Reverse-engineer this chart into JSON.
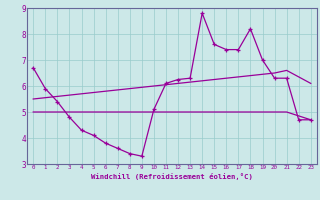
{
  "x": [
    0,
    1,
    2,
    3,
    4,
    5,
    6,
    7,
    8,
    9,
    10,
    11,
    12,
    13,
    14,
    15,
    16,
    17,
    18,
    19,
    20,
    21,
    22,
    23
  ],
  "windchill_line": [
    6.7,
    5.9,
    5.4,
    4.8,
    4.3,
    4.1,
    3.8,
    3.6,
    3.4,
    3.3,
    5.1,
    6.1,
    6.25,
    6.3,
    8.8,
    7.6,
    7.4,
    7.4,
    8.2,
    7.0,
    6.3,
    6.3,
    4.7,
    4.7
  ],
  "trend_rising": [
    5.5,
    5.55,
    5.6,
    5.65,
    5.7,
    5.75,
    5.8,
    5.85,
    5.9,
    5.95,
    6.0,
    6.05,
    6.1,
    6.15,
    6.2,
    6.25,
    6.3,
    6.35,
    6.4,
    6.45,
    6.5,
    6.6,
    6.35,
    6.1
  ],
  "trend_flat": [
    5.0,
    5.0,
    5.0,
    5.0,
    5.0,
    5.0,
    5.0,
    5.0,
    5.0,
    5.0,
    5.0,
    5.0,
    5.0,
    5.0,
    5.0,
    5.0,
    5.0,
    5.0,
    5.0,
    5.0,
    5.0,
    5.0,
    4.85,
    4.7
  ],
  "ylim": [
    3,
    9
  ],
  "xlim_min": -0.5,
  "xlim_max": 23.5,
  "yticks": [
    3,
    4,
    5,
    6,
    7,
    8,
    9
  ],
  "xticks": [
    0,
    1,
    2,
    3,
    4,
    5,
    6,
    7,
    8,
    9,
    10,
    11,
    12,
    13,
    14,
    15,
    16,
    17,
    18,
    19,
    20,
    21,
    22,
    23
  ],
  "xlabel": "Windchill (Refroidissement éolien,°C)",
  "color": "#990099",
  "bg_color": "#cce8e8",
  "grid_color": "#99cccc",
  "spine_color": "#666699"
}
